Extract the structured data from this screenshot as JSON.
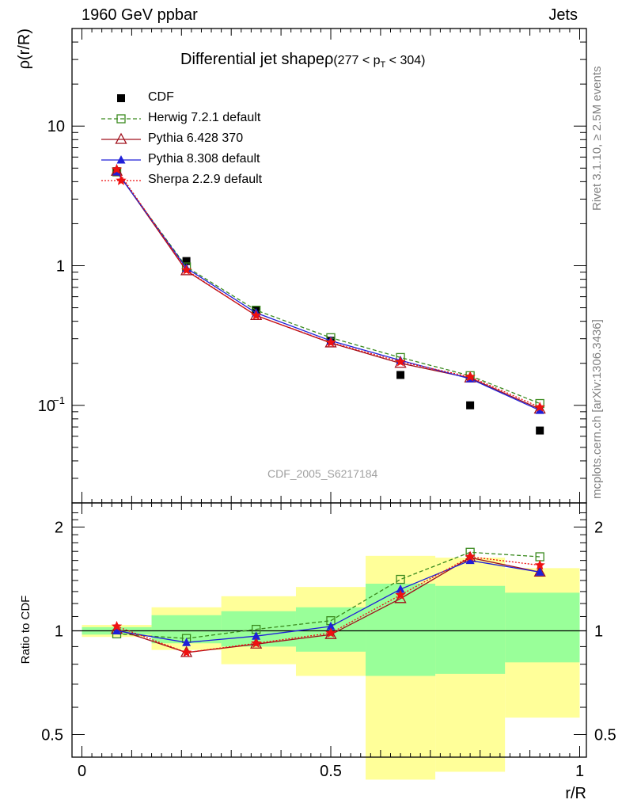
{
  "header": {
    "left": "1960 GeV ppbar",
    "right": "Jets"
  },
  "side_labels": {
    "rivet": "Rivet 3.1.10, ≥ 2.5M events",
    "mcplots": "mcplots.cern.ch [arXiv:1306.3436]"
  },
  "watermark": "CDF_2005_S6217184",
  "chart_data": [
    {
      "type": "line",
      "title": "Differential jet shapeρ",
      "title_cut": "(277 < p",
      "title_cut_sub": "T",
      "title_cut_end": " < 304)",
      "ylabel": "ρ(r/R)",
      "xlabel": "r/R",
      "yscale": "log",
      "xlim": [
        -0.0,
        1.0
      ],
      "ylim": [
        0.02,
        50
      ],
      "yticks": [
        {
          "value": 10,
          "label": "10"
        },
        {
          "value": 1,
          "label": "1"
        },
        {
          "value": 0.1,
          "label": "10",
          "sup": "−1"
        }
      ],
      "x": [
        0.07,
        0.21,
        0.35,
        0.5,
        0.64,
        0.78,
        0.92
      ],
      "series": [
        {
          "name": "CDF",
          "color": "#000000",
          "marker": "square-filled",
          "line": "none",
          "values": [
            4.75,
            1.08,
            0.48,
            0.29,
            0.165,
            0.1,
            0.066
          ]
        },
        {
          "name": "Herwig 7.2.1 default",
          "color": "#3a8a1e",
          "marker": "square-open",
          "line": "dashed",
          "values": [
            4.7,
            0.98,
            0.48,
            0.305,
            0.22,
            0.163,
            0.103
          ]
        },
        {
          "name": "Pythia 6.428 370",
          "color": "#a0101c",
          "marker": "triangle-open",
          "line": "solid",
          "values": [
            4.75,
            0.92,
            0.44,
            0.28,
            0.2,
            0.157,
            0.094
          ]
        },
        {
          "name": "Pythia 8.308 default",
          "color": "#1f1fd8",
          "marker": "triangle-filled",
          "line": "solid",
          "values": [
            4.7,
            0.96,
            0.46,
            0.29,
            0.21,
            0.155,
            0.092
          ]
        },
        {
          "name": "Sherpa 2.2.9 default",
          "color": "#ee1111",
          "marker": "star",
          "line": "dotted",
          "values": [
            4.9,
            0.93,
            0.44,
            0.282,
            0.205,
            0.16,
            0.097
          ]
        }
      ]
    },
    {
      "type": "line",
      "title": "",
      "ylabel": "Ratio to CDF",
      "xlabel": "r/R",
      "yscale": "log",
      "xlim": [
        -0.0,
        1.0
      ],
      "ylim": [
        0.43,
        2.35
      ],
      "yticks": [
        {
          "value": 2,
          "label": "2"
        },
        {
          "value": 1,
          "label": "1"
        },
        {
          "value": 0.5,
          "label": "0.5"
        }
      ],
      "xticks": [
        {
          "value": 0,
          "label": "0"
        },
        {
          "value": 0.5,
          "label": "0.5"
        },
        {
          "value": 1,
          "label": "1"
        }
      ],
      "bands": [
        {
          "x0": 0.0,
          "x1": 0.14,
          "yellow": [
            0.96,
            1.04
          ],
          "green": [
            0.975,
            1.025
          ]
        },
        {
          "x0": 0.14,
          "x1": 0.28,
          "yellow": [
            0.88,
            1.17
          ],
          "green": [
            0.92,
            1.11
          ]
        },
        {
          "x0": 0.28,
          "x1": 0.43,
          "yellow": [
            0.8,
            1.26
          ],
          "green": [
            0.9,
            1.14
          ]
        },
        {
          "x0": 0.43,
          "x1": 0.57,
          "yellow": [
            0.74,
            1.34
          ],
          "green": [
            0.87,
            1.17
          ]
        },
        {
          "x0": 0.57,
          "x1": 0.71,
          "yellow": [
            0.37,
            1.65
          ],
          "green": [
            0.74,
            1.37
          ]
        },
        {
          "x0": 0.71,
          "x1": 0.85,
          "yellow": [
            0.39,
            1.63
          ],
          "green": [
            0.75,
            1.35
          ]
        },
        {
          "x0": 0.85,
          "x1": 1.0,
          "yellow": [
            0.56,
            1.52
          ],
          "green": [
            0.81,
            1.29
          ]
        }
      ],
      "x": [
        0.07,
        0.21,
        0.35,
        0.5,
        0.64,
        0.78,
        0.92
      ],
      "series": [
        {
          "name": "Herwig 7.2.1 default",
          "color": "#3a8a1e",
          "marker": "square-open",
          "line": "dashed",
          "values": [
            0.98,
            0.95,
            1.01,
            1.07,
            1.41,
            1.69,
            1.64
          ]
        },
        {
          "name": "Pythia 6.428 370",
          "color": "#a0101c",
          "marker": "triangle-open",
          "line": "solid",
          "values": [
            1.01,
            0.865,
            0.915,
            0.975,
            1.24,
            1.63,
            1.48
          ]
        },
        {
          "name": "Pythia 8.308 default",
          "color": "#1f1fd8",
          "marker": "triangle-filled",
          "line": "solid",
          "values": [
            1.0,
            0.925,
            0.965,
            1.03,
            1.32,
            1.6,
            1.48
          ]
        },
        {
          "name": "Sherpa 2.2.9 default",
          "color": "#ee1111",
          "marker": "star",
          "line": "dotted",
          "values": [
            1.03,
            0.865,
            0.92,
            0.985,
            1.27,
            1.64,
            1.55
          ]
        }
      ]
    }
  ]
}
